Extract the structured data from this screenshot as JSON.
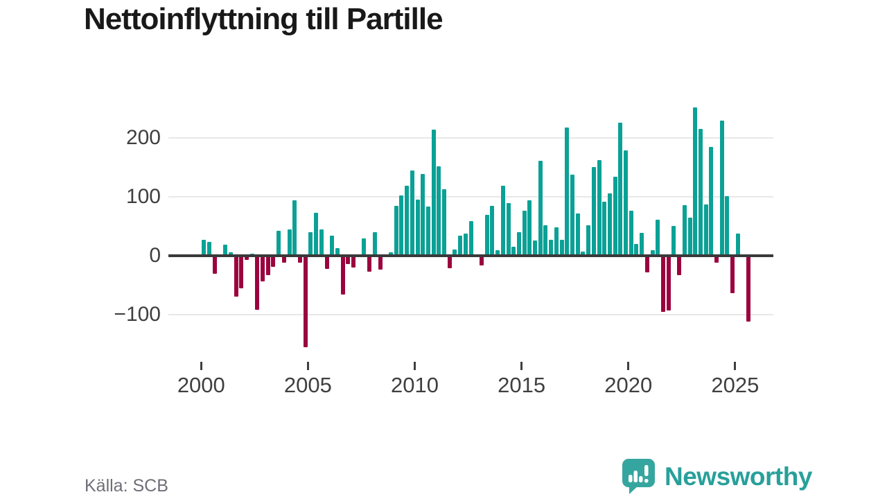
{
  "title": "Nettoinflyttning till Partille",
  "source": "Källa: SCB",
  "logo": {
    "text": "Newsworthy",
    "icon": "newsworthy-speech-bubble-bar-chart-icon"
  },
  "colors": {
    "positive": "#0ba196",
    "negative": "#9b033e",
    "grid": "#e8e8e8",
    "axis": "#3a3a3a",
    "text": "#3f3f3f",
    "source_text": "#6e6e78",
    "logo": "#35a69f",
    "logo_text": "#28a09a",
    "title_text": "#191919"
  },
  "chart_data": {
    "type": "bar",
    "title": "Nettoinflyttning till Partille",
    "xlabel": "",
    "ylabel": "",
    "x_unit": "quarter",
    "range": "2000Q1–2025Q3",
    "ylim": [
      -160,
      260
    ],
    "grid": true,
    "legend": "none",
    "y_ticks": [
      {
        "value": 200,
        "label": "200"
      },
      {
        "value": 100,
        "label": "100"
      },
      {
        "value": 0,
        "label": "0"
      },
      {
        "value": -100,
        "label": "−100"
      }
    ],
    "x_ticks": [
      2000,
      2005,
      2010,
      2015,
      2020,
      2025
    ],
    "years": [
      {
        "year": 2000,
        "values": [
          27,
          24,
          -29,
          0
        ]
      },
      {
        "year": 2001,
        "values": [
          19,
          6,
          -68,
          -54
        ]
      },
      {
        "year": 2002,
        "values": [
          -6,
          3,
          -90,
          -42
        ]
      },
      {
        "year": 2003,
        "values": [
          -32,
          -18,
          42,
          -11
        ]
      },
      {
        "year": 2004,
        "values": [
          44,
          94,
          -11,
          -154
        ]
      },
      {
        "year": 2005,
        "values": [
          40,
          73,
          44,
          -21
        ]
      },
      {
        "year": 2006,
        "values": [
          34,
          13,
          -64,
          -13
        ]
      },
      {
        "year": 2007,
        "values": [
          -19,
          0,
          29,
          -26
        ]
      },
      {
        "year": 2008,
        "values": [
          40,
          -22,
          2,
          6
        ]
      },
      {
        "year": 2009,
        "values": [
          84,
          102,
          119,
          144
        ]
      },
      {
        "year": 2010,
        "values": [
          95,
          138,
          83,
          214
        ]
      },
      {
        "year": 2011,
        "values": [
          151,
          113,
          -20,
          11
        ]
      },
      {
        "year": 2012,
        "values": [
          34,
          38,
          59,
          0
        ]
      },
      {
        "year": 2013,
        "values": [
          -15,
          69,
          84,
          9
        ]
      },
      {
        "year": 2014,
        "values": [
          119,
          89,
          15,
          40
        ]
      },
      {
        "year": 2015,
        "values": [
          76,
          94,
          26,
          161
        ]
      },
      {
        "year": 2016,
        "values": [
          52,
          27,
          48,
          27
        ]
      },
      {
        "year": 2017,
        "values": [
          217,
          137,
          71,
          7
        ]
      },
      {
        "year": 2018,
        "values": [
          52,
          150,
          162,
          91
        ]
      },
      {
        "year": 2019,
        "values": [
          106,
          134,
          225,
          178
        ]
      },
      {
        "year": 2020,
        "values": [
          76,
          20,
          39,
          -27
        ]
      },
      {
        "year": 2021,
        "values": [
          9,
          61,
          -94,
          -91
        ]
      },
      {
        "year": 2022,
        "values": [
          51,
          -32,
          86,
          65
        ]
      },
      {
        "year": 2023,
        "values": [
          251,
          215,
          87,
          184
        ]
      },
      {
        "year": 2024,
        "values": [
          -10,
          229,
          101,
          -62
        ]
      },
      {
        "year": 2025,
        "values": [
          38,
          0,
          -110
        ]
      }
    ]
  }
}
